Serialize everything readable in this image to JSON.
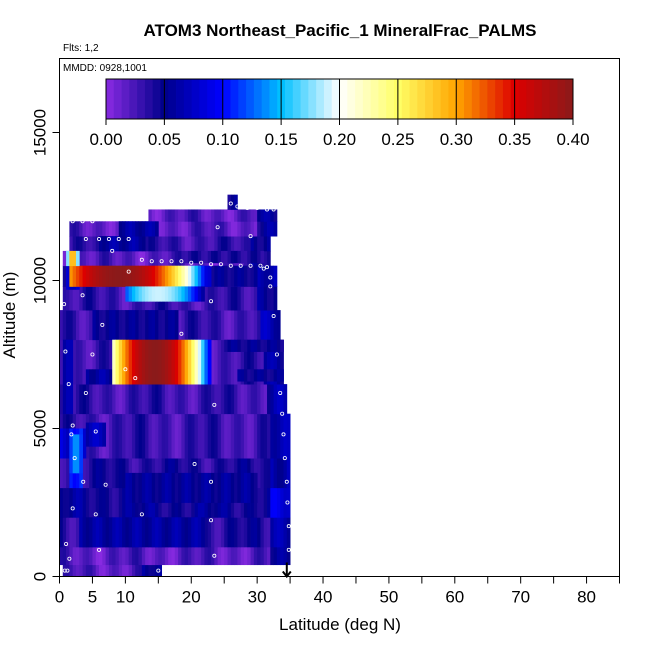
{
  "chart_data": {
    "type": "heatmap",
    "title": "ATOM3 Northeast_Pacific_1 MineralFrac_PALMS",
    "flights_label": "Flts: 1,2",
    "dates_label": "MMDD: 0928,1001",
    "xlabel": "Latitude (deg N)",
    "ylabel": "Altitude (m)",
    "xlim": [
      0,
      85
    ],
    "ylim": [
      0,
      17500
    ],
    "x_tick_labels": [
      "0",
      "5",
      "10",
      "20",
      "30",
      "40",
      "50",
      "60",
      "70",
      "80"
    ],
    "x_tick_values": [
      0,
      5,
      10,
      20,
      30,
      40,
      50,
      60,
      70,
      80
    ],
    "x_minor_ticks": [
      15,
      25,
      35,
      45,
      55,
      65,
      75,
      85
    ],
    "y_tick_labels": [
      "0",
      "5000",
      "10000",
      "15000"
    ],
    "y_tick_values": [
      0,
      5000,
      10000,
      15000
    ],
    "colorbar": {
      "min": 0.0,
      "max": 0.4,
      "tick_labels": [
        "0.00",
        "0.05",
        "0.10",
        "0.15",
        "0.20",
        "0.25",
        "0.30",
        "0.35",
        "0.40"
      ],
      "tick_values": [
        0.0,
        0.05,
        0.1,
        0.15,
        0.2,
        0.25,
        0.3,
        0.35,
        0.4
      ],
      "colors": [
        "#8a2be2",
        "#00008b",
        "#0000ff",
        "#00bfff",
        "#ffffff",
        "#ffff66",
        "#ffa500",
        "#dd0000",
        "#8b1a1a"
      ]
    },
    "profile_marker": {
      "x": 34.5,
      "label": "arrow-down"
    },
    "background_value": 0.02,
    "bands": [
      {
        "alt": [
          0,
          400
        ],
        "lat": [
          0.5,
          15.5
        ],
        "value": 0.02
      },
      {
        "alt": [
          400,
          1000
        ],
        "lat": [
          0,
          35
        ],
        "value": 0.02
      },
      {
        "alt": [
          1000,
          2000
        ],
        "lat": [
          0,
          35
        ],
        "value": 0.04
      },
      {
        "alt": [
          2000,
          3000
        ],
        "lat": [
          0,
          35
        ],
        "value": 0.05
      },
      {
        "alt": [
          3000,
          4000
        ],
        "lat": [
          0,
          35
        ],
        "value": 0.04
      },
      {
        "alt": [
          4000,
          5500
        ],
        "lat": [
          0,
          35
        ],
        "value": 0.03
      },
      {
        "alt": [
          5500,
          6500
        ],
        "lat": [
          0,
          34.5
        ],
        "value": 0.03
      },
      {
        "alt": [
          6500,
          8000
        ],
        "lat": [
          0,
          34
        ],
        "value": 0.03
      },
      {
        "alt": [
          8000,
          9000
        ],
        "lat": [
          0,
          33.5
        ],
        "value": 0.03
      },
      {
        "alt": [
          9000,
          9800
        ],
        "lat": [
          0.5,
          33
        ],
        "value": 0.03
      },
      {
        "alt": [
          9800,
          10500
        ],
        "lat": [
          0.5,
          33
        ],
        "value": 0.03
      },
      {
        "alt": [
          10500,
          11000
        ],
        "lat": [
          0.5,
          32
        ],
        "value": 0.02
      },
      {
        "alt": [
          11000,
          11500
        ],
        "lat": [
          1.5,
          32
        ],
        "value": 0.03
      },
      {
        "alt": [
          11500,
          12000
        ],
        "lat": [
          1.5,
          33
        ],
        "value": 0.02
      },
      {
        "alt": [
          12000,
          12400
        ],
        "lat": [
          13.5,
          33
        ],
        "value": 0.02
      },
      {
        "alt": [
          12400,
          12900
        ],
        "lat": [
          25.5,
          27
        ],
        "value": 0.02
      }
    ],
    "patches": [
      {
        "alt": [
          1000,
          2000
        ],
        "lat": [
          3,
          22
        ],
        "value": 0.06
      },
      {
        "alt": [
          2500,
          3500
        ],
        "lat": [
          10,
          30
        ],
        "value": 0.055
      },
      {
        "alt": [
          4000,
          5000
        ],
        "lat": [
          0,
          4
        ],
        "value": 0.08
      },
      {
        "alt": [
          3000,
          5000
        ],
        "lat": [
          1.5,
          3.5
        ],
        "value": 0.11
      },
      {
        "alt": [
          4400,
          5200
        ],
        "lat": [
          4,
          7
        ],
        "value": 0.07
      },
      {
        "alt": [
          5500,
          8000
        ],
        "lat": [
          0.5,
          2
        ],
        "value": 0.06
      },
      {
        "alt": [
          6500,
          7000
        ],
        "lat": [
          4,
          12
        ],
        "value": 0.06
      },
      {
        "alt": [
          7000,
          8000
        ],
        "lat": [
          8,
          11
        ],
        "value": 0.12
      },
      {
        "alt": [
          6500,
          8000
        ],
        "lat": [
          17,
          23
        ],
        "value": 0.09
      },
      {
        "alt": [
          7600,
          8000
        ],
        "lat": [
          25,
          34
        ],
        "value": 0.05
      },
      {
        "alt": [
          6600,
          7000
        ],
        "lat": [
          27,
          34
        ],
        "value": 0.05
      },
      {
        "alt": [
          8000,
          9000
        ],
        "lat": [
          5,
          18
        ],
        "value": 0.05
      },
      {
        "alt": [
          9800,
          10500
        ],
        "lat": [
          23,
          30
        ],
        "value": 0.05
      },
      {
        "alt": [
          10600,
          11000
        ],
        "lat": [
          18,
          31
        ],
        "value": 0.04
      },
      {
        "alt": [
          11000,
          11500
        ],
        "lat": [
          6,
          13
        ],
        "value": 0.06
      },
      {
        "alt": [
          11500,
          12000
        ],
        "lat": [
          9,
          15
        ],
        "value": 0.06
      },
      {
        "alt": [
          9700,
          10500
        ],
        "lat": [
          1,
          3
        ],
        "value": 0.08
      }
    ],
    "hotspots": [
      {
        "alt": [
          9800,
          10500
        ],
        "lat": [
          1.5,
          23
        ],
        "peak_lat": 9,
        "peak_value": 0.4,
        "edge_value": 0.08
      },
      {
        "alt": [
          9300,
          9800
        ],
        "lat": [
          10,
          22
        ],
        "peak_lat": 15,
        "peak_value": 0.19,
        "edge_value": 0.06
      },
      {
        "alt": [
          10500,
          11000
        ],
        "lat": [
          1,
          3
        ],
        "peak_lat": 2,
        "peak_value": 0.3,
        "edge_value": 0.1
      },
      {
        "alt": [
          6500,
          8000
        ],
        "lat": [
          8,
          23
        ],
        "peak_lat": 14.5,
        "peak_value": 0.4,
        "edge_value": 0.1
      },
      {
        "alt": [
          3500,
          4800
        ],
        "lat": [
          1.5,
          3.5
        ],
        "peak_lat": 2.5,
        "peak_value": 0.14,
        "edge_value": 0.1
      }
    ],
    "trajectory_points": [
      {
        "lat": 2.0,
        "alt": 12000
      },
      {
        "lat": 3.5,
        "alt": 12000
      },
      {
        "lat": 5.0,
        "alt": 12000
      },
      {
        "lat": 4.0,
        "alt": 11400
      },
      {
        "lat": 6.0,
        "alt": 11400
      },
      {
        "lat": 7.5,
        "alt": 11400
      },
      {
        "lat": 9.0,
        "alt": 11400
      },
      {
        "lat": 10.5,
        "alt": 11400
      },
      {
        "lat": 12.5,
        "alt": 10700
      },
      {
        "lat": 14.0,
        "alt": 10650
      },
      {
        "lat": 15.5,
        "alt": 10650
      },
      {
        "lat": 17.0,
        "alt": 10650
      },
      {
        "lat": 18.5,
        "alt": 10650
      },
      {
        "lat": 20.0,
        "alt": 10600
      },
      {
        "lat": 21.5,
        "alt": 10600
      },
      {
        "lat": 23.0,
        "alt": 10550
      },
      {
        "lat": 24.5,
        "alt": 10550
      },
      {
        "lat": 26.0,
        "alt": 10500
      },
      {
        "lat": 27.5,
        "alt": 10500
      },
      {
        "lat": 29.0,
        "alt": 10500
      },
      {
        "lat": 30.5,
        "alt": 10500
      },
      {
        "lat": 31.5,
        "alt": 10450
      },
      {
        "lat": 26.0,
        "alt": 12600
      },
      {
        "lat": 27.0,
        "alt": 12500
      },
      {
        "lat": 28.5,
        "alt": 12450
      },
      {
        "lat": 30.0,
        "alt": 12450
      },
      {
        "lat": 31.5,
        "alt": 12400
      },
      {
        "lat": 32.5,
        "alt": 12400
      },
      {
        "lat": 0.7,
        "alt": 9200
      },
      {
        "lat": 0.9,
        "alt": 7600
      },
      {
        "lat": 1.4,
        "alt": 6500
      },
      {
        "lat": 2.0,
        "alt": 5100
      },
      {
        "lat": 1.8,
        "alt": 4800
      },
      {
        "lat": 2.3,
        "alt": 4000
      },
      {
        "lat": 3.6,
        "alt": 3200
      },
      {
        "lat": 2.0,
        "alt": 2300
      },
      {
        "lat": 1.0,
        "alt": 1100
      },
      {
        "lat": 1.5,
        "alt": 600
      },
      {
        "lat": 1.2,
        "alt": 200
      },
      {
        "lat": 0.8,
        "alt": 200
      },
      {
        "lat": 5.0,
        "alt": 7500
      },
      {
        "lat": 4.0,
        "alt": 6200
      },
      {
        "lat": 5.5,
        "alt": 4900
      },
      {
        "lat": 7.0,
        "alt": 3100
      },
      {
        "lat": 5.5,
        "alt": 2100
      },
      {
        "lat": 6.0,
        "alt": 900
      },
      {
        "lat": 3.5,
        "alt": 9500
      },
      {
        "lat": 8.0,
        "alt": 11000
      },
      {
        "lat": 10.0,
        "alt": 7000
      },
      {
        "lat": 11.5,
        "alt": 6700
      },
      {
        "lat": 12.5,
        "alt": 2100
      },
      {
        "lat": 15.0,
        "alt": 200
      },
      {
        "lat": 18.5,
        "alt": 8200
      },
      {
        "lat": 20.5,
        "alt": 3800
      },
      {
        "lat": 23.0,
        "alt": 9300
      },
      {
        "lat": 23.5,
        "alt": 5800
      },
      {
        "lat": 23.5,
        "alt": 700
      },
      {
        "lat": 24.0,
        "alt": 11800
      },
      {
        "lat": 23.0,
        "alt": 3200
      },
      {
        "lat": 23.0,
        "alt": 1900
      },
      {
        "lat": 29.0,
        "alt": 11500
      },
      {
        "lat": 32.0,
        "alt": 9800
      },
      {
        "lat": 32.5,
        "alt": 8800
      },
      {
        "lat": 33.0,
        "alt": 7500
      },
      {
        "lat": 33.5,
        "alt": 6200
      },
      {
        "lat": 33.8,
        "alt": 5500
      },
      {
        "lat": 34.0,
        "alt": 4800
      },
      {
        "lat": 34.2,
        "alt": 4000
      },
      {
        "lat": 34.5,
        "alt": 3200
      },
      {
        "lat": 34.6,
        "alt": 2500
      },
      {
        "lat": 34.8,
        "alt": 1700
      },
      {
        "lat": 34.8,
        "alt": 900
      },
      {
        "lat": 32.0,
        "alt": 10100
      },
      {
        "lat": 31.0,
        "alt": 10400
      },
      {
        "lat": 6.5,
        "alt": 8500
      },
      {
        "lat": 10.5,
        "alt": 10300
      }
    ]
  }
}
